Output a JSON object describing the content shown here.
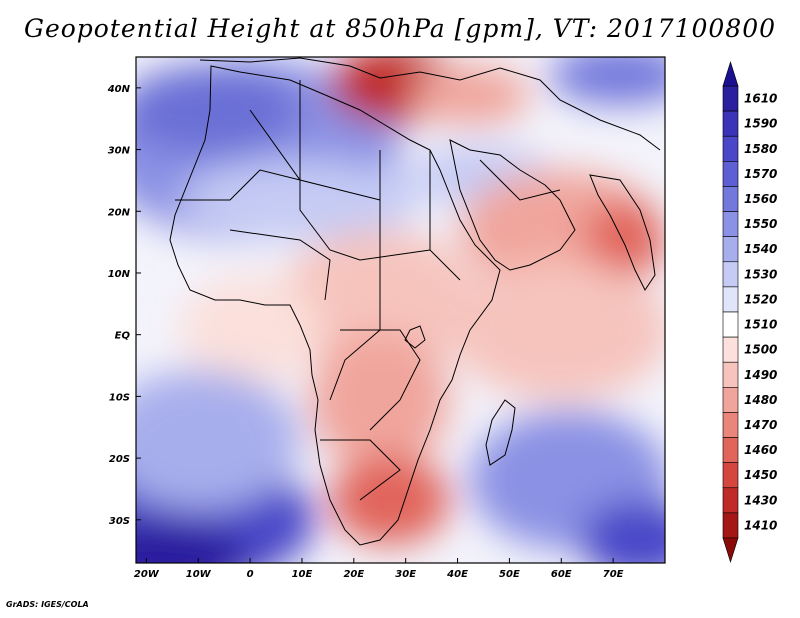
{
  "title": "Geopotential Height at 850hPa [gpm], VT: 2017100800",
  "map": {
    "lat_labels": [
      "40N",
      "30N",
      "20N",
      "10N",
      "EQ",
      "10S",
      "20S",
      "30S"
    ],
    "lat_values": [
      40,
      30,
      20,
      10,
      0,
      -10,
      -20,
      -30
    ],
    "lon_labels": [
      "20W",
      "10W",
      "0",
      "10E",
      "20E",
      "30E",
      "40E",
      "50E",
      "60E",
      "70E"
    ],
    "lon_values": [
      -20,
      -10,
      0,
      10,
      20,
      30,
      40,
      50,
      60,
      70
    ],
    "lon_range": [
      -22,
      80
    ],
    "lat_range": [
      -37,
      45
    ]
  },
  "colorbar": {
    "labels": [
      "1610",
      "1590",
      "1580",
      "1570",
      "1560",
      "1550",
      "1540",
      "1530",
      "1520",
      "1510",
      "1500",
      "1490",
      "1480",
      "1470",
      "1460",
      "1450",
      "1430",
      "1410"
    ],
    "colors": [
      "#2a1f9e",
      "#3a34b8",
      "#4a47c8",
      "#5d5fd2",
      "#7378dc",
      "#8b91e4",
      "#a7aeec",
      "#c5cbf4",
      "#e1e5fa",
      "#ffffff",
      "#fbe0dc",
      "#f6c4bd",
      "#f0a59c",
      "#e9857b",
      "#e1655b",
      "#d4463e",
      "#c02b27",
      "#a51616"
    ]
  },
  "credit": "GrADS: IGES/COLA"
}
